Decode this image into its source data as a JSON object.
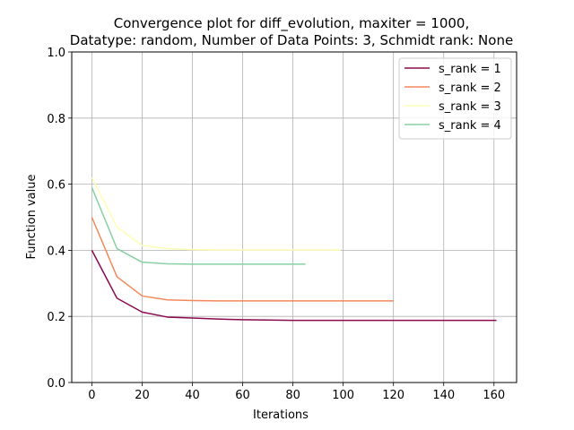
{
  "chart_data": {
    "type": "line",
    "title_line1": "Convergence plot for diff_evolution, maxiter = 1000,",
    "title_line2": "Datatype: random, Number of Data Points: 3, Schmidt rank: None",
    "xlabel": "Iterations",
    "ylabel": "Function value",
    "xlim": [
      -8,
      169
    ],
    "ylim": [
      0,
      1.0
    ],
    "xticks": [
      0,
      20,
      40,
      60,
      80,
      100,
      120,
      140,
      160
    ],
    "yticks": [
      0.0,
      0.2,
      0.4,
      0.6,
      0.8,
      1.0
    ],
    "ytick_labels": [
      "0.0",
      "0.2",
      "0.4",
      "0.6",
      "0.8",
      "1.0"
    ],
    "grid": true,
    "legend_position": "top-right",
    "series": [
      {
        "name": "s_rank = 1",
        "color": "#8b0a50",
        "x": [
          0,
          10,
          20,
          30,
          40,
          50,
          60,
          70,
          80,
          90,
          100,
          110,
          120,
          130,
          140,
          150,
          161
        ],
        "y": [
          0.4,
          0.255,
          0.213,
          0.198,
          0.195,
          0.192,
          0.19,
          0.189,
          0.188,
          0.188,
          0.188,
          0.188,
          0.188,
          0.188,
          0.188,
          0.188,
          0.188
        ]
      },
      {
        "name": "s_rank = 2",
        "color": "#f4885a",
        "x": [
          0,
          10,
          20,
          30,
          40,
          50,
          60,
          70,
          80,
          90,
          100,
          110,
          120
        ],
        "y": [
          0.5,
          0.32,
          0.262,
          0.25,
          0.248,
          0.247,
          0.247,
          0.247,
          0.247,
          0.247,
          0.247,
          0.247,
          0.247
        ]
      },
      {
        "name": "s_rank = 3",
        "color": "#fefeb3",
        "x": [
          0,
          10,
          20,
          30,
          40,
          50,
          60,
          70,
          80,
          90,
          99
        ],
        "y": [
          0.62,
          0.47,
          0.415,
          0.405,
          0.402,
          0.401,
          0.401,
          0.401,
          0.401,
          0.401,
          0.401
        ]
      },
      {
        "name": "s_rank = 4",
        "color": "#88d0a4",
        "x": [
          0,
          10,
          20,
          30,
          40,
          50,
          60,
          70,
          85
        ],
        "y": [
          0.59,
          0.405,
          0.364,
          0.359,
          0.358,
          0.358,
          0.358,
          0.358,
          0.358
        ]
      }
    ]
  }
}
